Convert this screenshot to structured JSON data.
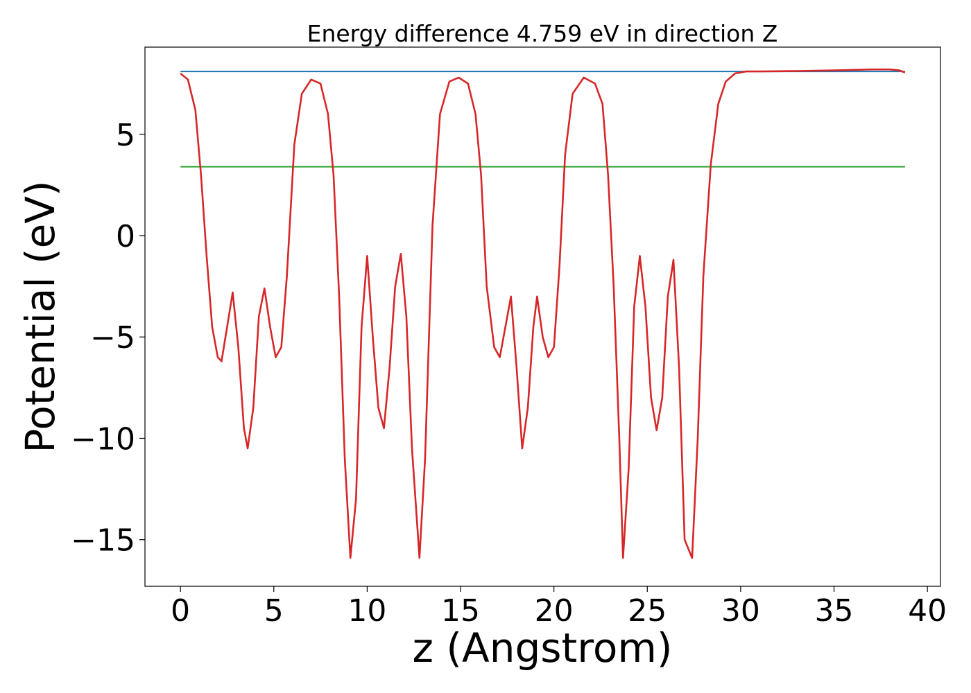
{
  "chart_data": {
    "type": "line",
    "title": "Energy difference 4.759 eV in direction Z",
    "xlabel": "z (Angstrom)",
    "ylabel": "Potential (eV)",
    "xlim": [
      -1.9,
      40.7
    ],
    "ylim": [
      -17.3,
      9.3
    ],
    "xticks": [
      0,
      5,
      10,
      15,
      20,
      25,
      30,
      35,
      40
    ],
    "yticks": [
      5,
      0,
      -5,
      -10,
      -15
    ],
    "xtick_labels": [
      "0",
      "5",
      "10",
      "15",
      "20",
      "25",
      "30",
      "35",
      "40"
    ],
    "ytick_labels": [
      "5",
      "0",
      "−5",
      "−10",
      "−15"
    ],
    "grid": false,
    "legend": "none",
    "series": [
      {
        "color": "#1f77b4",
        "x": [
          0,
          38.8
        ],
        "y": [
          8.1,
          8.1
        ]
      },
      {
        "color": "#2ca02c",
        "x": [
          0,
          38.8
        ],
        "y": [
          3.4,
          3.4
        ]
      },
      {
        "color": "#d62728",
        "x": [
          0,
          0.4,
          0.8,
          1.1,
          1.4,
          1.7,
          2.0,
          2.2,
          2.5,
          2.8,
          3.1,
          3.4,
          3.6,
          3.9,
          4.2,
          4.5,
          4.8,
          5.1,
          5.4,
          5.7,
          6.1,
          6.5,
          7.0,
          7.5,
          7.9,
          8.2,
          8.5,
          8.8,
          9.1,
          9.4,
          9.7,
          10.0,
          10.3,
          10.6,
          10.9,
          11.2,
          11.5,
          11.8,
          12.1,
          12.4,
          12.8,
          13.1,
          13.5,
          13.9,
          14.4,
          14.9,
          15.4,
          15.8,
          16.1,
          16.4,
          16.8,
          17.1,
          17.4,
          17.7,
          18.0,
          18.3,
          18.6,
          18.9,
          19.1,
          19.4,
          19.7,
          20.0,
          20.3,
          20.6,
          21.0,
          21.6,
          22.2,
          22.6,
          22.9,
          23.2,
          23.5,
          23.7,
          24.0,
          24.3,
          24.6,
          24.9,
          25.2,
          25.5,
          25.8,
          26.1,
          26.4,
          26.7,
          27.0,
          27.4,
          27.7,
          28.0,
          28.4,
          28.8,
          29.2,
          29.7,
          30.3,
          31.0,
          33.0,
          35.0,
          37.0,
          38.0,
          38.5,
          38.8
        ],
        "y": [
          8.0,
          7.7,
          6.2,
          3.0,
          -1.0,
          -4.5,
          -6.0,
          -6.2,
          -4.5,
          -2.8,
          -5.5,
          -9.5,
          -10.5,
          -8.5,
          -4.0,
          -2.6,
          -4.5,
          -6.0,
          -5.5,
          -2.0,
          4.5,
          7.0,
          7.7,
          7.5,
          6.0,
          3.0,
          -3.0,
          -11.0,
          -15.9,
          -13.0,
          -4.5,
          -1.0,
          -5.0,
          -8.5,
          -9.5,
          -6.5,
          -2.5,
          -0.9,
          -4.0,
          -10.5,
          -15.9,
          -11.0,
          0.5,
          6.0,
          7.6,
          7.8,
          7.5,
          6.0,
          3.0,
          -2.5,
          -5.5,
          -6.0,
          -4.5,
          -3.0,
          -6.5,
          -10.5,
          -8.5,
          -4.5,
          -3.0,
          -5.0,
          -6.0,
          -5.5,
          -1.5,
          4.0,
          7.0,
          7.8,
          7.5,
          6.5,
          3.0,
          -2.5,
          -10.0,
          -15.9,
          -11.5,
          -3.5,
          -1.0,
          -3.5,
          -8.0,
          -9.6,
          -8.0,
          -3.0,
          -1.2,
          -6.5,
          -15.0,
          -15.9,
          -10.0,
          -2.0,
          3.5,
          6.5,
          7.6,
          8.0,
          8.1,
          8.1,
          8.12,
          8.15,
          8.2,
          8.2,
          8.15,
          8.05
        ]
      }
    ]
  }
}
